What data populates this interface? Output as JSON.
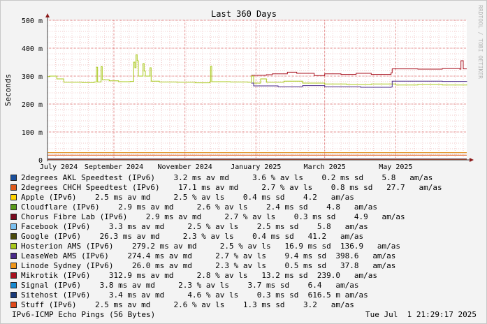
{
  "chart_data": {
    "type": "line",
    "title": "Last 360 Days",
    "ylabel": "Seconds",
    "watermark": "RRDTOOL / TOBI OETIKER",
    "ylim": [
      0,
      500
    ],
    "yticks": [
      {
        "value": 0,
        "label": "0"
      },
      {
        "value": 100,
        "label": "100 m"
      },
      {
        "value": 200,
        "label": "200 m"
      },
      {
        "value": 300,
        "label": "300 m"
      },
      {
        "value": 400,
        "label": "400 m"
      },
      {
        "value": 500,
        "label": "500 m"
      }
    ],
    "xlim": [
      "2024-07-06",
      "2025-07-01"
    ],
    "xticks": [
      {
        "date": "2024-07-01",
        "label": "July 2024"
      },
      {
        "date": "2024-09-01",
        "label": "September 2024"
      },
      {
        "date": "2024-11-01",
        "label": "November 2024"
      },
      {
        "date": "2025-01-01",
        "label": "January 2025"
      },
      {
        "date": "2025-03-01",
        "label": "March 2025"
      },
      {
        "date": "2025-05-01",
        "label": "May 2025"
      }
    ],
    "series": [
      {
        "name": "2degrees AKL Speedtest (IPv6)",
        "color": "#1a4f9c",
        "stats": "3.2 ms av md     3.6 % av ls    0.2 ms sd    5.8   am/as",
        "points": [
          [
            "2024-07-06",
            3
          ],
          [
            "2025-07-01",
            3
          ]
        ]
      },
      {
        "name": "2degrees CHCH Speedtest (IPv6)",
        "color": "#e05a1a",
        "stats": "17.1 ms av md     2.7 % av ls    0.8 ms sd   27.7   am/as",
        "points": [
          [
            "2024-07-06",
            17
          ],
          [
            "2025-07-01",
            17
          ]
        ]
      },
      {
        "name": "Apple (IPv6)",
        "color": "#ffd200",
        "stats": "2.5 ms av md     2.5 % av ls    0.4 ms sd    4.2   am/as",
        "points": [
          [
            "2024-07-06",
            2.5
          ],
          [
            "2025-07-01",
            2.5
          ]
        ]
      },
      {
        "name": "Cloudflare (IPv6)",
        "color": "#5a9a1a",
        "stats": "2.9 ms av md     2.6 % av ls    2.4 ms sd    4.8   am/as",
        "points": [
          [
            "2024-07-06",
            3
          ],
          [
            "2025-07-01",
            3
          ]
        ]
      },
      {
        "name": "Chorus Fibre Lab (IPv6)",
        "color": "#7a0a1e",
        "stats": "2.9 ms av md     2.7 % av ls    0.3 ms sd    4.9   am/as",
        "points": [
          [
            "2024-07-06",
            3
          ],
          [
            "2025-07-01",
            3
          ]
        ]
      },
      {
        "name": "Facebook (IPv6)",
        "color": "#7ac0f0",
        "stats": "3.3 ms av md     2.5 % av ls    2.5 ms sd    5.8   am/as",
        "points": [
          [
            "2024-07-06",
            3
          ],
          [
            "2025-07-01",
            3
          ]
        ]
      },
      {
        "name": "Google (IPv6)",
        "color": "#4a4a0a",
        "stats": "26.3 ms av md     2.3 % av ls    0.4 ms sd   41.2   am/as",
        "points": [
          [
            "2024-07-06",
            26
          ],
          [
            "2025-07-01",
            26
          ]
        ]
      },
      {
        "name": "Hosterion AMS (IPv6)",
        "color": "#a8c81a",
        "stats": "279.2 ms av md     2.5 % av ls   16.9 ms sd  136.9   am/as",
        "points": [
          [
            "2024-07-06",
            298
          ],
          [
            "2024-07-08",
            300
          ],
          [
            "2024-07-14",
            290
          ],
          [
            "2024-07-20",
            278
          ],
          [
            "2024-08-05",
            277
          ],
          [
            "2024-08-15",
            279
          ],
          [
            "2024-08-17",
            332
          ],
          [
            "2024-08-18",
            279
          ],
          [
            "2024-08-21",
            334
          ],
          [
            "2024-08-22",
            287
          ],
          [
            "2024-08-28",
            283
          ],
          [
            "2024-09-05",
            280
          ],
          [
            "2024-09-15",
            281
          ],
          [
            "2024-09-18",
            350
          ],
          [
            "2024-09-19",
            330
          ],
          [
            "2024-09-20",
            376
          ],
          [
            "2024-09-21",
            355
          ],
          [
            "2024-09-22",
            300
          ],
          [
            "2024-09-26",
            345
          ],
          [
            "2024-09-27",
            318
          ],
          [
            "2024-09-28",
            300
          ],
          [
            "2024-10-02",
            330
          ],
          [
            "2024-10-03",
            282
          ],
          [
            "2024-10-10",
            279
          ],
          [
            "2024-10-25",
            278
          ],
          [
            "2024-11-10",
            276
          ],
          [
            "2024-11-22",
            278
          ],
          [
            "2024-11-23",
            335
          ],
          [
            "2024-11-24",
            280
          ],
          [
            "2024-12-10",
            279
          ],
          [
            "2024-12-25",
            278
          ],
          [
            "2024-12-28",
            300
          ],
          [
            "2024-12-30",
            275
          ],
          [
            "2025-01-05",
            290
          ],
          [
            "2025-01-10",
            278
          ],
          [
            "2025-01-25",
            282
          ],
          [
            "2025-02-10",
            275
          ],
          [
            "2025-03-01",
            272
          ],
          [
            "2025-03-20",
            270
          ],
          [
            "2025-04-10",
            272
          ],
          [
            "2025-05-01",
            268
          ],
          [
            "2025-05-20",
            270
          ],
          [
            "2025-06-10",
            268
          ],
          [
            "2025-07-01",
            270
          ]
        ]
      },
      {
        "name": "LeaseWeb AMS (IPv6)",
        "color": "#4a2a8a",
        "stats": "274.4 ms av md     2.7 % av ls    9.4 ms sd  398.6   am/as",
        "points": [
          [
            "2024-12-28",
            275
          ],
          [
            "2024-12-30",
            265
          ],
          [
            "2025-01-20",
            262
          ],
          [
            "2025-02-10",
            266
          ],
          [
            "2025-03-01",
            262
          ],
          [
            "2025-04-01",
            260
          ],
          [
            "2025-04-27",
            261
          ],
          [
            "2025-04-28",
            282
          ],
          [
            "2025-05-20",
            282
          ],
          [
            "2025-06-10",
            281
          ],
          [
            "2025-07-01",
            282
          ]
        ]
      },
      {
        "name": "Linode Sydney (IPv6)",
        "color": "#f0961a",
        "stats": "26.0 ms av md     2.3 % av ls    0.5 ms sd   37.8   am/as",
        "points": [
          [
            "2024-07-06",
            26
          ],
          [
            "2025-07-01",
            26
          ]
        ]
      },
      {
        "name": "Mikrotik (IPv6)",
        "color": "#a8101e",
        "stats": "312.9 ms av md     2.8 % av ls   13.2 ms sd  239.0   am/as",
        "points": [
          [
            "2024-12-28",
            303
          ],
          [
            "2025-01-10",
            305
          ],
          [
            "2025-01-15",
            308
          ],
          [
            "2025-01-28",
            314
          ],
          [
            "2025-02-05",
            310
          ],
          [
            "2025-02-20",
            302
          ],
          [
            "2025-03-01",
            308
          ],
          [
            "2025-03-15",
            306
          ],
          [
            "2025-03-28",
            310
          ],
          [
            "2025-04-10",
            306
          ],
          [
            "2025-04-27",
            312
          ],
          [
            "2025-04-28",
            326
          ],
          [
            "2025-05-20",
            325
          ],
          [
            "2025-06-10",
            327
          ],
          [
            "2025-06-25",
            325
          ],
          [
            "2025-06-26",
            355
          ],
          [
            "2025-06-28",
            326
          ],
          [
            "2025-07-01",
            326
          ]
        ]
      },
      {
        "name": "Signal (IPv6)",
        "color": "#1a8ad0",
        "stats": "3.8 ms av md     2.3 % av ls    3.7 ms sd    6.4   am/as",
        "points": [
          [
            "2024-07-06",
            4
          ],
          [
            "2025-07-01",
            4
          ]
        ]
      },
      {
        "name": "Sitehost (IPv6)",
        "color": "#1a3a7a",
        "stats": "3.4 ms av md     4.6 % av ls    0.3 ms sd  616.5 m am/as",
        "points": [
          [
            "2024-07-06",
            3.5
          ],
          [
            "2025-07-01",
            3.5
          ]
        ]
      },
      {
        "name": "Stuff (IPv6)",
        "color": "#e04a1a",
        "stats": "2.5 ms av md     2.6 % av ls    1.3 ms sd    3.2   am/as",
        "points": [
          [
            "2024-07-06",
            2.5
          ],
          [
            "2025-07-01",
            2.5
          ]
        ]
      }
    ],
    "footer_left": "IPv6-ICMP Echo Pings (56 Bytes)",
    "footer_right": "Tue Jul  1 21:29:17 2025",
    "grid": true
  }
}
